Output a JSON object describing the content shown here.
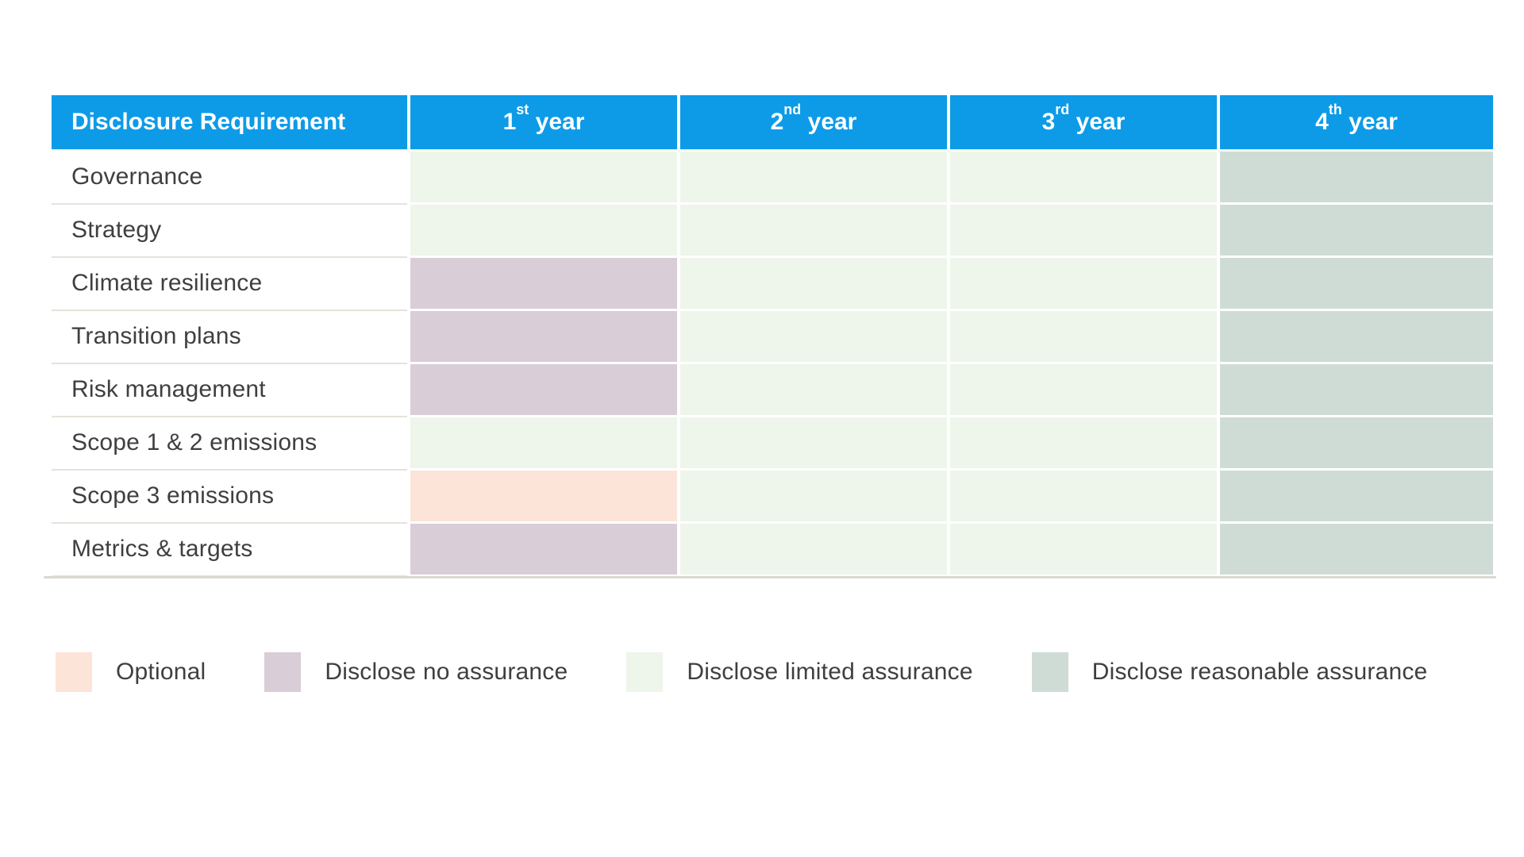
{
  "header": {
    "label": "Disclosure Requirement",
    "years": [
      {
        "num": "1",
        "ordinal": "st",
        "word": " year"
      },
      {
        "num": "2",
        "ordinal": "nd",
        "word": " year"
      },
      {
        "num": "3",
        "ordinal": "rd",
        "word": " year"
      },
      {
        "num": "4",
        "ordinal": "th",
        "word": " year"
      }
    ]
  },
  "chart_data": {
    "type": "table",
    "columns": [
      "Disclosure Requirement",
      "1st year",
      "2nd year",
      "3rd year",
      "4th year"
    ],
    "rows": [
      {
        "label": "Governance",
        "statuses": [
          "limited",
          "limited",
          "limited",
          "reasonable"
        ]
      },
      {
        "label": "Strategy",
        "statuses": [
          "limited",
          "limited",
          "limited",
          "reasonable"
        ]
      },
      {
        "label": "Climate resilience",
        "statuses": [
          "none",
          "limited",
          "limited",
          "reasonable"
        ]
      },
      {
        "label": "Transition plans",
        "statuses": [
          "none",
          "limited",
          "limited",
          "reasonable"
        ]
      },
      {
        "label": "Risk management",
        "statuses": [
          "none",
          "limited",
          "limited",
          "reasonable"
        ]
      },
      {
        "label": "Scope 1 & 2 emissions",
        "statuses": [
          "limited",
          "limited",
          "limited",
          "reasonable"
        ]
      },
      {
        "label": "Scope 3 emissions",
        "statuses": [
          "optional",
          "limited",
          "limited",
          "reasonable"
        ]
      },
      {
        "label": "Metrics & targets",
        "statuses": [
          "none",
          "limited",
          "limited",
          "reasonable"
        ]
      }
    ],
    "status_labels": {
      "optional": "Optional",
      "none": "Disclose no assurance",
      "limited": "Disclose limited assurance",
      "reasonable": "Disclose reasonable assurance"
    },
    "legend_order": [
      "optional",
      "none",
      "limited",
      "reasonable"
    ],
    "legend_position": "bottom-left"
  },
  "colors": {
    "header_bg": "#0d9be8",
    "header_text": "#ffffff",
    "optional": "#fce4d9",
    "none": "#d9cdd7",
    "limited": "#eef5ea",
    "reasonable": "#cfdcd5",
    "row_text": "#3f3f3f",
    "label_separator": "#e6e3db"
  }
}
